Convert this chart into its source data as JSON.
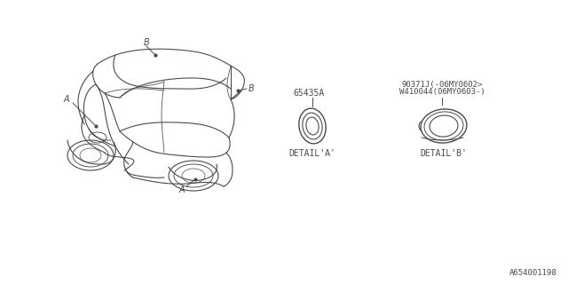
{
  "bg_color": "#ffffff",
  "line_color": "#4a4a4a",
  "text_color": "#4a4a4a",
  "footer_code": "A654001198",
  "part_A_label": "65435A",
  "part_B_label_1": "90371J(-06MY0602>",
  "part_B_label_2": "W410044(06MY0603-)",
  "detail_A_label": "DETAIL'A'",
  "detail_B_label": "DETAIL'B'",
  "label_A": "A",
  "label_B": "B",
  "car_lw": 0.8,
  "detail_lw": 0.9
}
